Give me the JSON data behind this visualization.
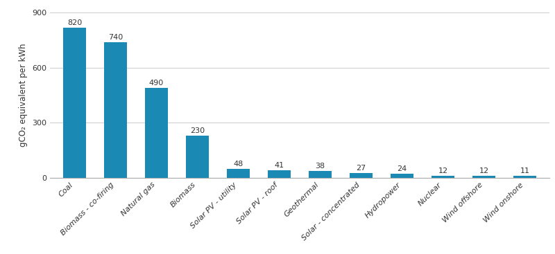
{
  "categories": [
    "Coal",
    "Biomass - co-firing",
    "Natural gas",
    "Biomass",
    "Solar PV - utility",
    "Solar PV - roof",
    "Geothermal",
    "Solar - concentrated",
    "Hydropower",
    "Nuclear",
    "Wind offshore",
    "Wind onshore"
  ],
  "values": [
    820,
    740,
    490,
    230,
    48,
    41,
    38,
    27,
    24,
    12,
    12,
    11
  ],
  "bar_color": "#1a8ab4",
  "ylabel": "gCO₂ equivalent per kWh",
  "ylim": [
    0,
    900
  ],
  "yticks": [
    0,
    300,
    600,
    900
  ],
  "label_fontsize": 8,
  "tick_fontsize": 8,
  "ylabel_fontsize": 8.5,
  "bar_width": 0.55,
  "grid_color": "#d0d0d0",
  "background_color": "#ffffff",
  "label_color": "#333333",
  "spine_color": "#aaaaaa"
}
